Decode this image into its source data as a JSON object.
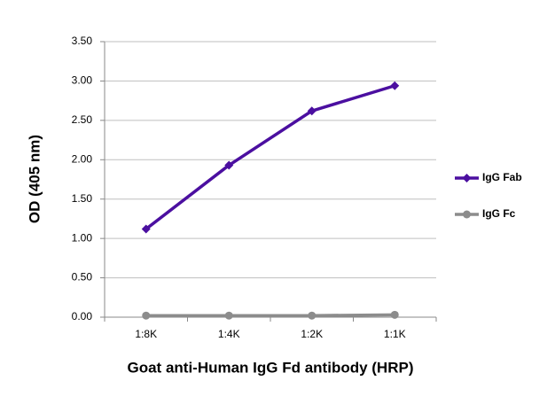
{
  "chart_data": {
    "type": "line",
    "x_label": "Goat anti-Human IgG Fd antibody (HRP)",
    "y_label": "OD (405 nm)",
    "categories": [
      "1:8K",
      "1:4K",
      "1:2K",
      "1:1K"
    ],
    "series": [
      {
        "name": "IgG Fab",
        "color": "#4b0fa0",
        "values": [
          1.12,
          1.93,
          2.62,
          2.94
        ]
      },
      {
        "name": "IgG Fc",
        "color": "#8c8c8c",
        "values": [
          0.02,
          0.02,
          0.02,
          0.03
        ]
      }
    ],
    "ylim": [
      0,
      3.5
    ],
    "yticks": [
      {
        "value": 0,
        "label": "0.00"
      },
      {
        "value": 0.5,
        "label": "0.50"
      },
      {
        "value": 1,
        "label": "1.00"
      },
      {
        "value": 1.5,
        "label": "1.50"
      },
      {
        "value": 2,
        "label": "2.00"
      },
      {
        "value": 2.5,
        "label": "2.50"
      },
      {
        "value": 3,
        "label": "3.00"
      },
      {
        "value": 3.5,
        "label": "3.50"
      }
    ],
    "grid": true,
    "legend": "right"
  }
}
